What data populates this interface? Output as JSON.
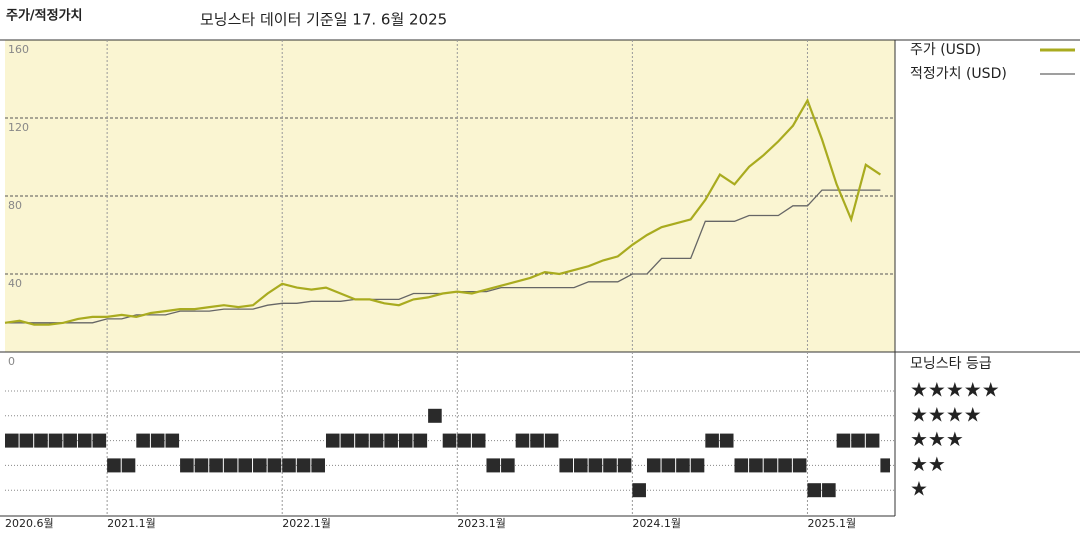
{
  "chart_data": {
    "type": "line",
    "title": "주가/적정가치",
    "subtitle": "모닝스타 데이터 기준일 17. 6월 2025",
    "x": [
      "2020-06",
      "2020-07",
      "2020-08",
      "2020-09",
      "2020-10",
      "2020-11",
      "2020-12",
      "2021-01",
      "2021-02",
      "2021-03",
      "2021-04",
      "2021-05",
      "2021-06",
      "2021-07",
      "2021-08",
      "2021-09",
      "2021-10",
      "2021-11",
      "2021-12",
      "2022-01",
      "2022-02",
      "2022-03",
      "2022-04",
      "2022-05",
      "2022-06",
      "2022-07",
      "2022-08",
      "2022-09",
      "2022-10",
      "2022-11",
      "2022-12",
      "2023-01",
      "2023-02",
      "2023-03",
      "2023-04",
      "2023-05",
      "2023-06",
      "2023-07",
      "2023-08",
      "2023-09",
      "2023-10",
      "2023-11",
      "2023-12",
      "2024-01",
      "2024-02",
      "2024-03",
      "2024-04",
      "2024-05",
      "2024-06",
      "2024-07",
      "2024-08",
      "2024-09",
      "2024-10",
      "2024-11",
      "2024-12",
      "2025-01",
      "2025-02",
      "2025-03",
      "2025-04",
      "2025-05",
      "2025-06"
    ],
    "xlim": [
      "2020-06",
      "2025-07"
    ],
    "xticks": [
      {
        "value": "2020-06",
        "label": "2020.6월"
      },
      {
        "value": "2021-01",
        "label": "2021.1월"
      },
      {
        "value": "2022-01",
        "label": "2022.1월"
      },
      {
        "value": "2023-01",
        "label": "2023.1월"
      },
      {
        "value": "2024-01",
        "label": "2024.1월"
      },
      {
        "value": "2025-01",
        "label": "2025.1월"
      }
    ],
    "ylim": [
      0,
      160
    ],
    "yticks": [
      0,
      40,
      80,
      120,
      160
    ],
    "grid": true,
    "series": [
      {
        "name": "주가 (USD)",
        "color": "#a9ab1f",
        "values": [
          15,
          16,
          14,
          14,
          15,
          17,
          18,
          18,
          19,
          18,
          20,
          21,
          22,
          22,
          23,
          24,
          23,
          24,
          30,
          35,
          33,
          32,
          33,
          30,
          27,
          27,
          25,
          24,
          27,
          28,
          30,
          31,
          30,
          32,
          34,
          36,
          38,
          41,
          40,
          42,
          44,
          47,
          49,
          55,
          60,
          64,
          66,
          68,
          78,
          91,
          86,
          95,
          101,
          108,
          116,
          129,
          109,
          86,
          68,
          96,
          91
        ]
      },
      {
        "name": "적정가치 (USD)",
        "color": "#666666",
        "values": [
          15,
          15,
          15,
          15,
          15,
          15,
          15,
          17,
          17,
          19,
          19,
          19,
          21,
          21,
          21,
          22,
          22,
          22,
          24,
          25,
          25,
          26,
          26,
          26,
          27,
          27,
          27,
          27,
          30,
          30,
          30,
          31,
          31,
          31,
          33,
          33,
          33,
          33,
          33,
          33,
          36,
          36,
          36,
          40,
          40,
          48,
          48,
          48,
          67,
          67,
          67,
          70,
          70,
          70,
          75,
          75,
          83,
          83,
          83,
          83,
          83
        ]
      }
    ],
    "rating": {
      "name": "모닝스타 등급",
      "levels": [
        "★★★★★",
        "★★★★",
        "★★★",
        "★★",
        "★"
      ],
      "values": [
        3,
        3,
        3,
        3,
        3,
        3,
        3,
        2,
        2,
        3,
        3,
        3,
        2,
        2,
        2,
        2,
        2,
        2,
        2,
        2,
        2,
        2,
        3,
        3,
        3,
        3,
        3,
        3,
        3,
        4,
        3,
        3,
        3,
        2,
        2,
        3,
        3,
        3,
        2,
        2,
        2,
        2,
        2,
        1,
        2,
        2,
        2,
        2,
        3,
        3,
        2,
        2,
        2,
        2,
        2,
        1,
        1,
        3,
        3,
        3,
        2
      ]
    }
  }
}
